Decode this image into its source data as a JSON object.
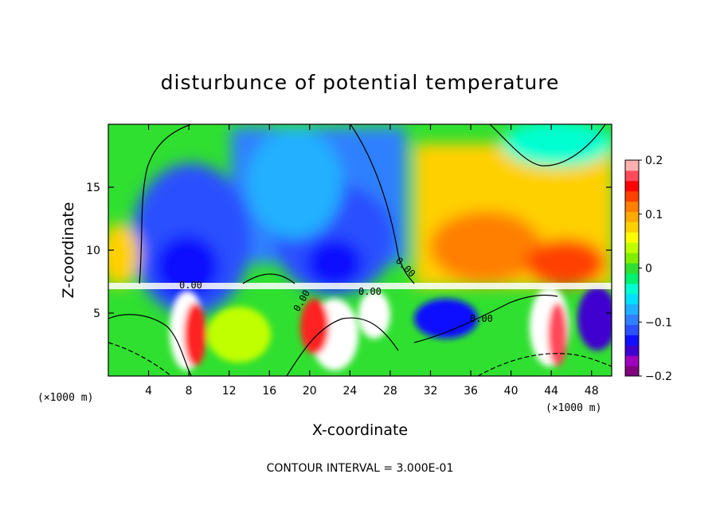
{
  "chart_data": {
    "type": "heatmap",
    "title": "disturbunce of potential temperature",
    "xlabel": "X-coordinate",
    "ylabel": "Z-coordinate",
    "x_unit_left": "(×1000 m)",
    "x_unit_right": "(×1000 m)",
    "xlim": [
      0,
      50
    ],
    "ylim": [
      0,
      20
    ],
    "x_ticks": [
      4,
      8,
      12,
      16,
      20,
      24,
      28,
      32,
      36,
      40,
      44,
      48
    ],
    "y_ticks": [
      5,
      10,
      15
    ],
    "colorbar": {
      "range": [
        -0.2,
        0.2
      ],
      "tick_values": [
        0.2,
        0.1,
        0,
        -0.1,
        -0.2
      ],
      "tick_labels": [
        "0.2",
        "0.1",
        "0",
        "−0.1",
        "−0.2"
      ],
      "colors": [
        "#800080",
        "#a000c0",
        "#3f00d0",
        "#1010ff",
        "#2a50ff",
        "#2f80ff",
        "#20b0ff",
        "#00e0ff",
        "#00ffd0",
        "#00f070",
        "#30e030",
        "#80f000",
        "#c0ff00",
        "#ffff00",
        "#ffd000",
        "#ffaa00",
        "#ff7f00",
        "#ff4000",
        "#ff0000",
        "#ff4a5a",
        "#ffb0b0"
      ]
    },
    "contour_labels": [
      "0.00",
      "0.00",
      "0.00",
      "0.00",
      "0.00"
    ],
    "note": "CONTOUR INTERVAL = 3.000E-01",
    "grid": false,
    "legend": "colorbar right"
  }
}
